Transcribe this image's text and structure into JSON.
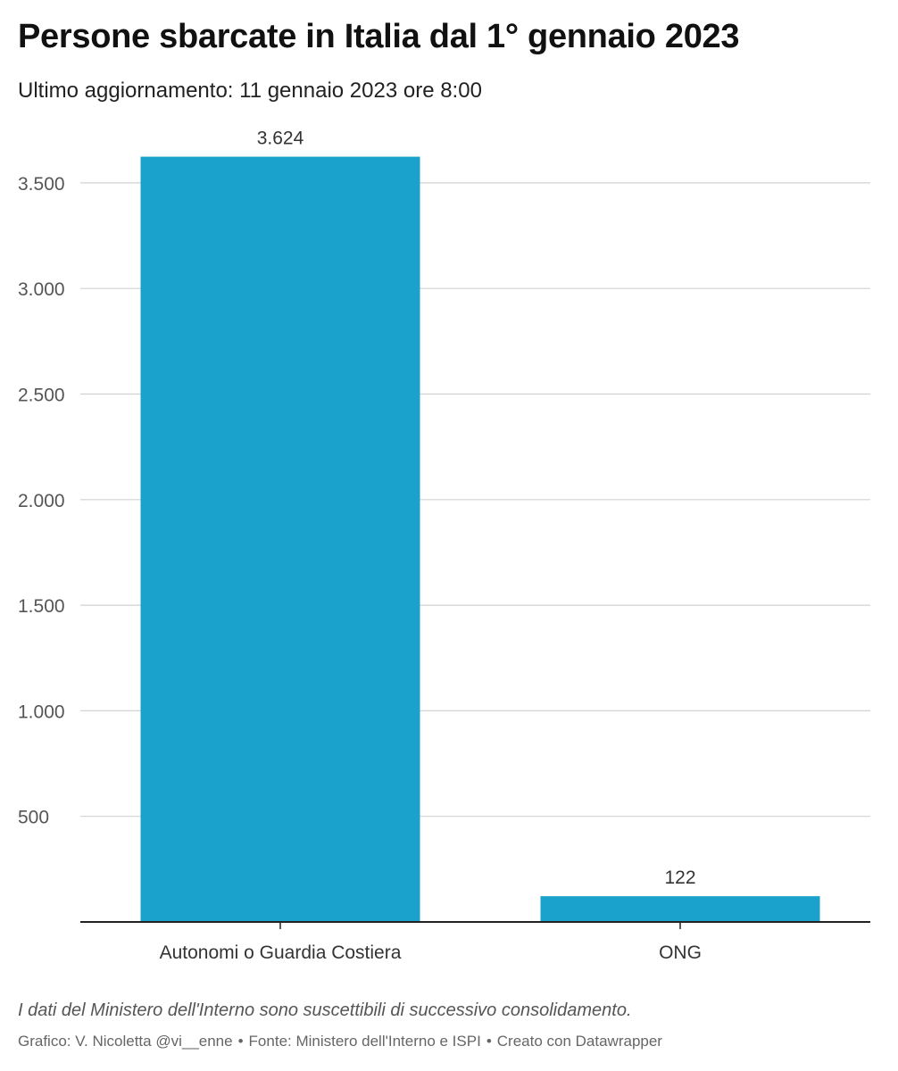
{
  "title": "Persone sbarcate in Italia dal 1° gennaio 2023",
  "subtitle": "Ultimo aggiornamento: 11 gennaio 2023 ore 8:00",
  "chart_data": {
    "type": "bar",
    "categories": [
      "Autonomi o Guardia Costiera",
      "ONG"
    ],
    "values": [
      3624,
      122
    ],
    "value_labels": [
      "3.624",
      "122"
    ],
    "ylim": [
      0,
      3700
    ],
    "yticks": [
      500,
      1000,
      1500,
      2000,
      2500,
      3000,
      3500
    ],
    "ytick_labels": [
      "500",
      "1.000",
      "1.500",
      "2.000",
      "2.500",
      "3.000",
      "3.500"
    ],
    "bar_color": "#1aa1cc",
    "grid": true,
    "xlabel": "",
    "ylabel": ""
  },
  "notes": "I dati del Ministero dell'Interno sono suscettibili di successivo consolidamento.",
  "footer": {
    "credit": "Grafico: V. Nicoletta @vi__enne",
    "source": "Fonte: Ministero dell'Interno e ISPI",
    "tool": "Creato con Datawrapper",
    "separator": "•"
  }
}
